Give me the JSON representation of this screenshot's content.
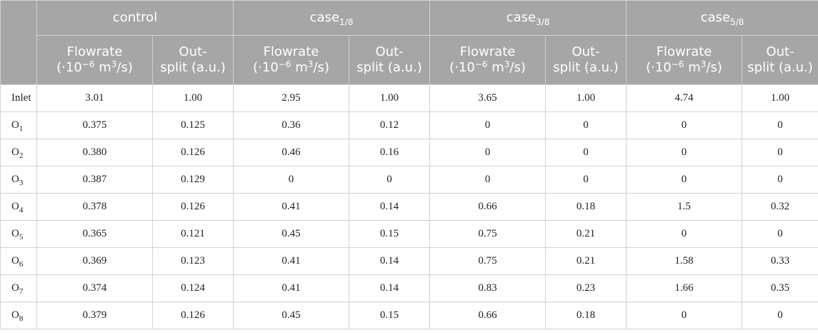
{
  "header": {
    "groups": [
      {
        "base": "control",
        "sub": ""
      },
      {
        "base": "case",
        "sub": "1/8"
      },
      {
        "base": "case",
        "sub": "3/8"
      },
      {
        "base": "case",
        "sub": "5/8"
      }
    ],
    "flowrate": {
      "line1": "Flowrate",
      "line2_pre": "(·10",
      "exp1": "−6",
      "mid": " m",
      "exp2": "3",
      "post": "/s)"
    },
    "outsplit": {
      "line1": "Out-",
      "line2": "split (a.u.)"
    }
  },
  "rows": [
    {
      "base": "Inlet",
      "sub": "",
      "cells": [
        "3.01",
        "1.00",
        "2.95",
        "1.00",
        "3.65",
        "1.00",
        "4.74",
        "1.00"
      ]
    },
    {
      "base": "O",
      "sub": "1",
      "cells": [
        "0.375",
        "0.125",
        "0.36",
        "0.12",
        "0",
        "0",
        "0",
        "0"
      ]
    },
    {
      "base": "O",
      "sub": "2",
      "cells": [
        "0.380",
        "0.126",
        "0.46",
        "0.16",
        "0",
        "0",
        "0",
        "0"
      ]
    },
    {
      "base": "O",
      "sub": "3",
      "cells": [
        "0.387",
        "0.129",
        "0",
        "0",
        "0",
        "0",
        "0",
        "0"
      ]
    },
    {
      "base": "O",
      "sub": "4",
      "cells": [
        "0.378",
        "0.126",
        "0.41",
        "0.14",
        "0.66",
        "0.18",
        "1.5",
        "0.32"
      ]
    },
    {
      "base": "O",
      "sub": "5",
      "cells": [
        "0.365",
        "0.121",
        "0.45",
        "0.15",
        "0.75",
        "0.21",
        "0",
        "0"
      ]
    },
    {
      "base": "O",
      "sub": "6",
      "cells": [
        "0.369",
        "0.123",
        "0.41",
        "0.14",
        "0.75",
        "0.21",
        "1.58",
        "0.33"
      ]
    },
    {
      "base": "O",
      "sub": "7",
      "cells": [
        "0.374",
        "0.124",
        "0.41",
        "0.14",
        "0.83",
        "0.23",
        "1.66",
        "0.35"
      ]
    },
    {
      "base": "O",
      "sub": "8",
      "cells": [
        "0.379",
        "0.126",
        "0.45",
        "0.15",
        "0.66",
        "0.18",
        "0",
        "0"
      ]
    }
  ]
}
